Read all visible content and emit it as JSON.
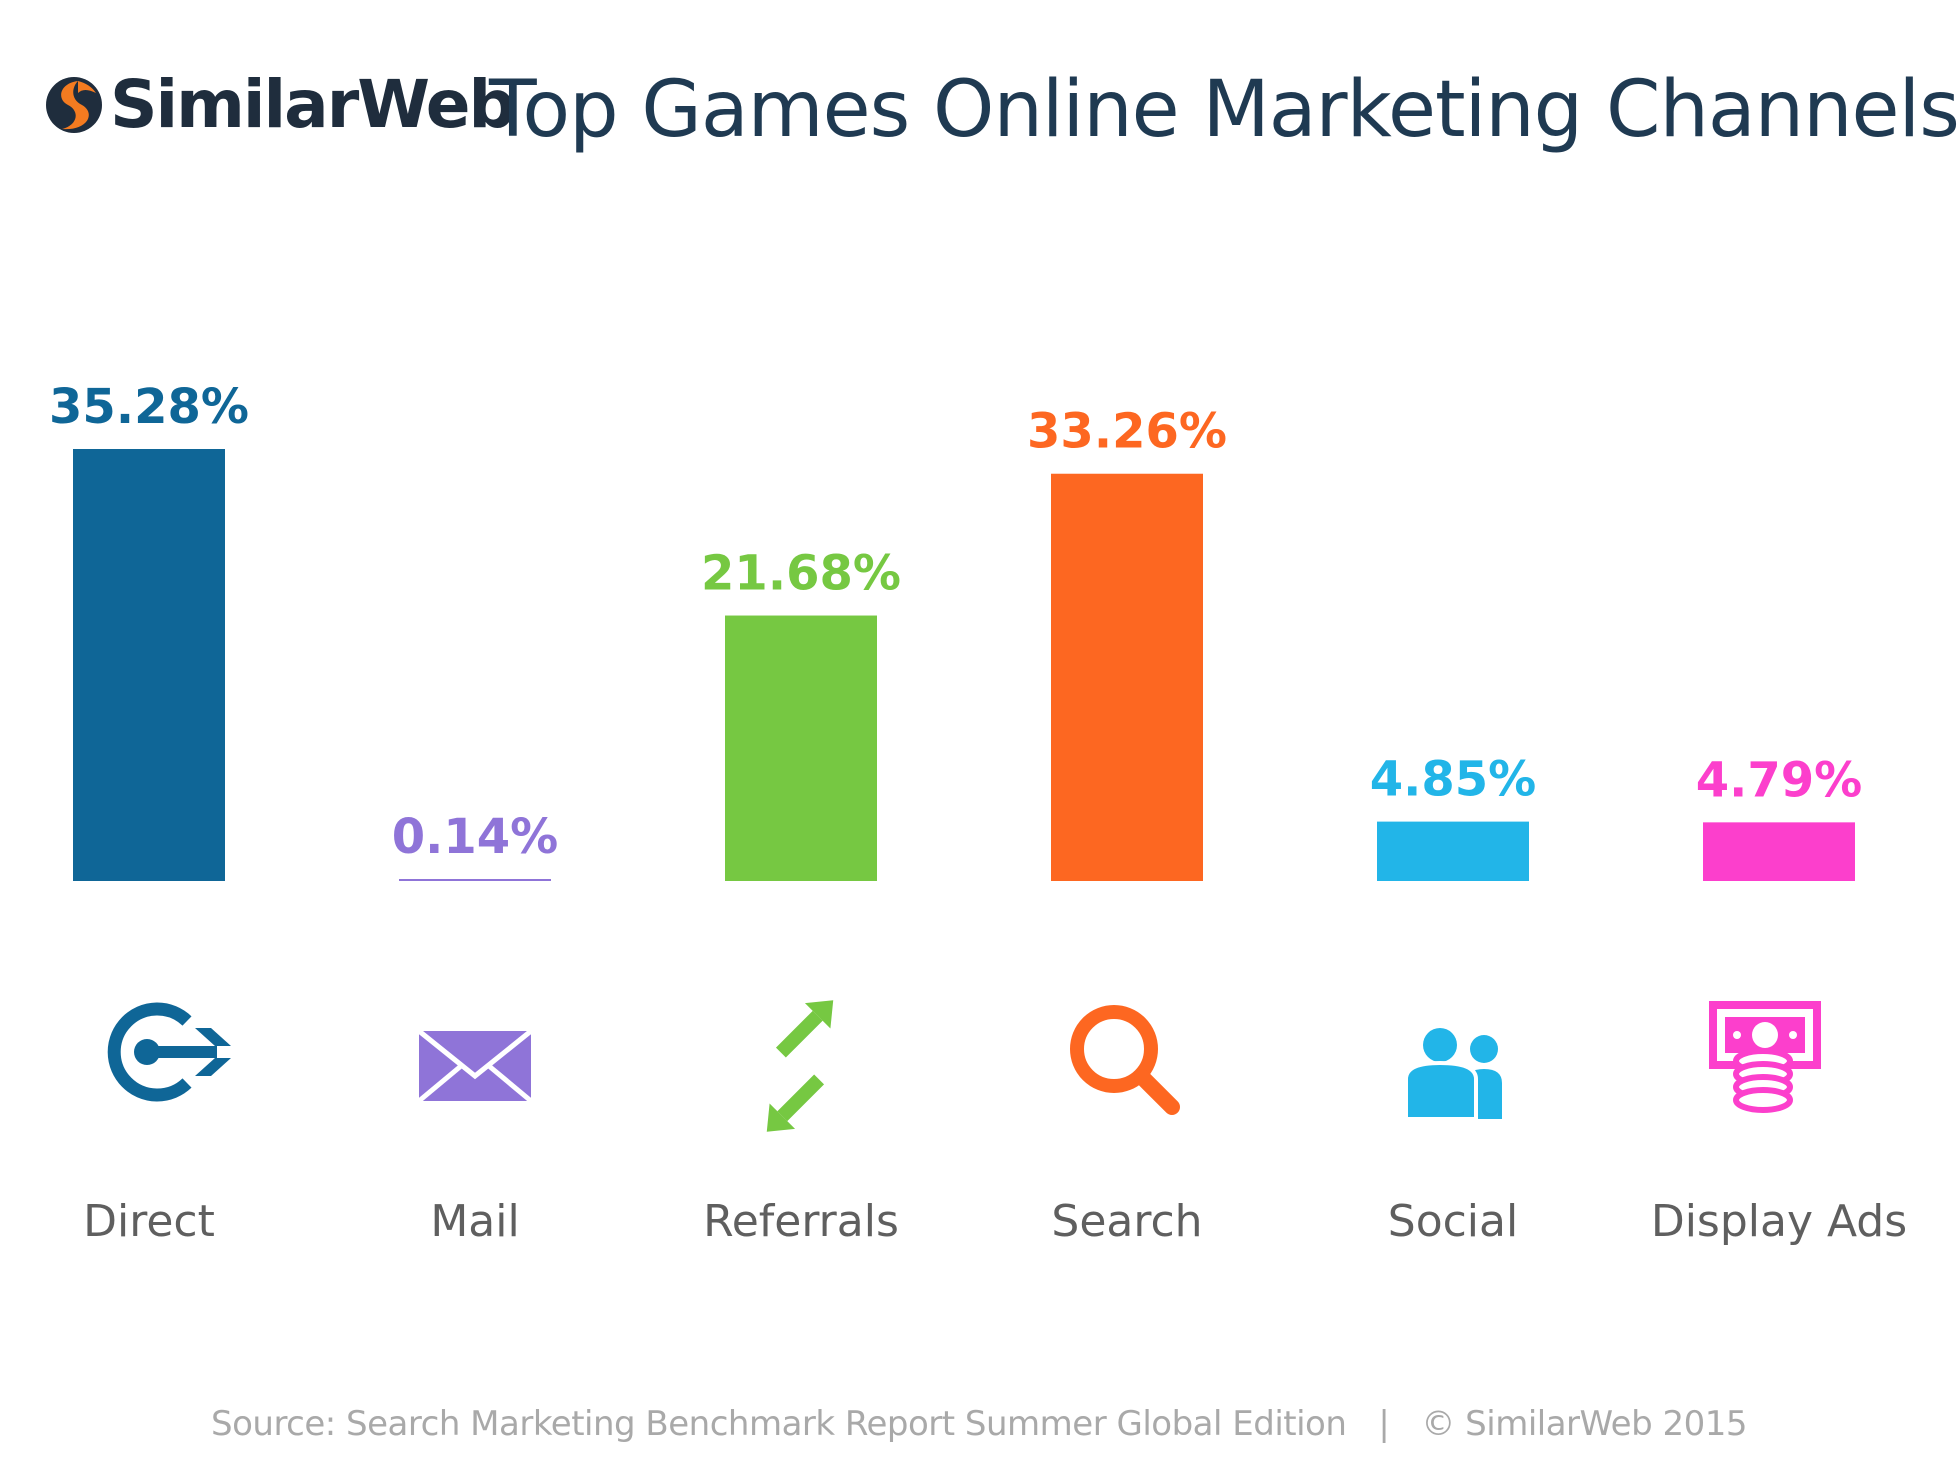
{
  "brand": {
    "name": "SimilarWeb"
  },
  "chart_data": {
    "type": "bar",
    "title": "Top Games Online Marketing Channels",
    "categories": [
      "Direct",
      "Mail",
      "Referrals",
      "Search",
      "Social",
      "Display Ads"
    ],
    "values": [
      35.28,
      0.14,
      21.68,
      33.26,
      4.85,
      4.79
    ],
    "value_labels": [
      "35.28%",
      "0.14%",
      "21.68%",
      "33.26%",
      "4.85%",
      "4.79%"
    ],
    "icons": [
      "target-icon",
      "mail-icon",
      "referral-arrows-icon",
      "search-icon",
      "social-people-icon",
      "display-ads-icon"
    ],
    "colors": [
      "#0f6697",
      "#8f74d8",
      "#76c842",
      "#fd6721",
      "#22b5e8",
      "#fc3fcc"
    ],
    "xlabel": "",
    "ylabel": "",
    "ylim": [
      0,
      35.28
    ],
    "grid": false,
    "legend": "none"
  },
  "footer": {
    "source": "Source: Search Marketing Benchmark Report Summer Global Edition",
    "separator": "|",
    "copyright": "© SimilarWeb 2015"
  }
}
